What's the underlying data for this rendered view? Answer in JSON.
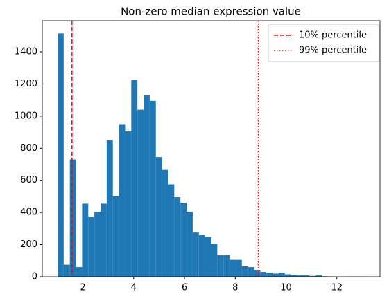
{
  "chart_data": {
    "type": "histogram",
    "title": "Non-zero median expression value",
    "bins": [
      1.0,
      1.242,
      1.484,
      1.726,
      1.968,
      2.21,
      2.452,
      2.694,
      2.936,
      3.178,
      3.42,
      3.662,
      3.904,
      4.146,
      4.388,
      4.63,
      4.872,
      5.114,
      5.356,
      5.598,
      5.84,
      6.082,
      6.324,
      6.566,
      6.808,
      7.05,
      7.292,
      7.534,
      7.776,
      8.018,
      8.26,
      8.502,
      8.744,
      8.986,
      9.228,
      9.47,
      9.712,
      9.954,
      10.196,
      10.438,
      10.68,
      10.922,
      11.164,
      11.406,
      11.648,
      11.89,
      12.132,
      12.374,
      12.616,
      12.858,
      13.1
    ],
    "values": [
      1515,
      75,
      730,
      60,
      455,
      375,
      405,
      455,
      850,
      500,
      950,
      905,
      1225,
      1040,
      1130,
      1095,
      745,
      665,
      575,
      495,
      460,
      405,
      275,
      260,
      250,
      205,
      135,
      135,
      105,
      105,
      65,
      60,
      40,
      30,
      25,
      20,
      25,
      15,
      10,
      8,
      8,
      5,
      8,
      3,
      2,
      1,
      0,
      1,
      1,
      1
    ],
    "color": "#1f77b4",
    "vlines": [
      {
        "name": "10% percentile",
        "value": 1.57,
        "color": "#ff0000",
        "style": "dashed"
      },
      {
        "name": "99% percentile",
        "value": 8.91,
        "color": "#ff0000",
        "style": "dotted"
      }
    ],
    "xlim": [
      0.4,
      13.7
    ],
    "xticks": [
      2,
      4,
      6,
      8,
      10,
      12
    ],
    "ylim": [
      0,
      1594
    ],
    "yticks": [
      0,
      200,
      400,
      600,
      800,
      1000,
      1200,
      1400
    ],
    "legend": "upper right"
  }
}
